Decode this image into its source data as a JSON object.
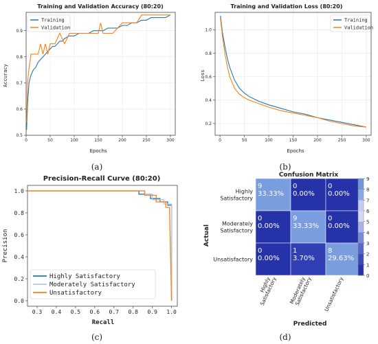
{
  "captions": {
    "a": "(a)",
    "b": "(b)",
    "c": "(c)",
    "d": "(d)"
  },
  "chart_data": [
    {
      "id": "acc",
      "type": "line",
      "title": "Training and Validation Accuracy (80:20)",
      "xlabel": "Epochs",
      "ylabel": "Accuracy",
      "xlim": [
        0,
        310
      ],
      "ylim": [
        0.5,
        0.97
      ],
      "xticks": [
        0,
        50,
        100,
        150,
        200,
        250,
        300
      ],
      "yticks": [
        0.5,
        0.6,
        0.7,
        0.8,
        0.9
      ],
      "legend": "top-left",
      "series": [
        {
          "name": "Training",
          "color": "#1f77b4",
          "x": [
            1,
            3,
            6,
            10,
            15,
            20,
            25,
            30,
            35,
            40,
            45,
            50,
            55,
            60,
            65,
            70,
            75,
            80,
            90,
            100,
            110,
            120,
            130,
            140,
            150,
            160,
            170,
            180,
            190,
            200,
            210,
            220,
            230,
            240,
            250,
            260,
            270,
            280,
            290,
            300
          ],
          "y": [
            0.52,
            0.62,
            0.7,
            0.73,
            0.75,
            0.76,
            0.78,
            0.79,
            0.8,
            0.81,
            0.82,
            0.83,
            0.84,
            0.84,
            0.85,
            0.86,
            0.86,
            0.87,
            0.88,
            0.88,
            0.89,
            0.89,
            0.89,
            0.9,
            0.9,
            0.9,
            0.91,
            0.91,
            0.91,
            0.92,
            0.92,
            0.93,
            0.93,
            0.94,
            0.94,
            0.95,
            0.95,
            0.95,
            0.95,
            0.96
          ]
        },
        {
          "name": "Validation",
          "color": "#ff7f0e",
          "x": [
            1,
            3,
            5,
            8,
            10,
            15,
            20,
            25,
            30,
            35,
            40,
            45,
            50,
            60,
            70,
            80,
            90,
            100,
            120,
            140,
            150,
            155,
            160,
            180,
            200,
            210,
            220,
            230,
            240,
            250,
            260,
            280,
            300
          ],
          "y": [
            0.55,
            0.7,
            0.74,
            0.78,
            0.81,
            0.81,
            0.81,
            0.81,
            0.85,
            0.81,
            0.85,
            0.81,
            0.85,
            0.85,
            0.89,
            0.85,
            0.89,
            0.89,
            0.89,
            0.89,
            0.89,
            0.93,
            0.89,
            0.89,
            0.93,
            0.93,
            0.93,
            0.93,
            0.96,
            0.96,
            0.96,
            0.96,
            0.96
          ]
        }
      ]
    },
    {
      "id": "loss",
      "type": "line",
      "title": "Training and Validation Loss (80:20)",
      "xlabel": "Epochs",
      "ylabel": "Loss",
      "xlim": [
        -10,
        310
      ],
      "ylim": [
        0.1,
        1.15
      ],
      "xticks": [
        0,
        50,
        100,
        150,
        200,
        250,
        300
      ],
      "yticks": [
        0.2,
        0.4,
        0.6,
        0.8,
        1.0
      ],
      "legend": "top-right",
      "series": [
        {
          "name": "Training",
          "color": "#1f77b4",
          "x": [
            1,
            5,
            10,
            15,
            20,
            30,
            40,
            50,
            60,
            80,
            100,
            125,
            150,
            175,
            200,
            225,
            250,
            275,
            300
          ],
          "y": [
            1.12,
            0.98,
            0.86,
            0.76,
            0.68,
            0.57,
            0.5,
            0.46,
            0.43,
            0.39,
            0.36,
            0.33,
            0.3,
            0.28,
            0.25,
            0.23,
            0.21,
            0.19,
            0.17
          ]
        },
        {
          "name": "Validation",
          "color": "#ff7f0e",
          "x": [
            1,
            5,
            10,
            15,
            20,
            30,
            40,
            50,
            60,
            80,
            100,
            125,
            150,
            175,
            200,
            225,
            250,
            275,
            300
          ],
          "y": [
            1.1,
            0.95,
            0.8,
            0.69,
            0.6,
            0.5,
            0.45,
            0.42,
            0.4,
            0.37,
            0.34,
            0.31,
            0.29,
            0.27,
            0.25,
            0.22,
            0.2,
            0.18,
            0.17
          ]
        }
      ]
    },
    {
      "id": "pr",
      "type": "line",
      "title": "Precision-Recall Curve (80:20)",
      "xlabel": "Recall",
      "ylabel": "Precision",
      "xlim": [
        0.25,
        1.03
      ],
      "ylim": [
        -0.05,
        1.05
      ],
      "xticks": [
        0.3,
        0.4,
        0.5,
        0.6,
        0.7,
        0.8,
        0.9,
        1.0
      ],
      "yticks": [
        0.0,
        0.2,
        0.4,
        0.6,
        0.8,
        1.0
      ],
      "legend": "bottom-left",
      "series": [
        {
          "name": "Highly Satisfactory",
          "color": "#1f77b4",
          "x": [
            0.25,
            0.83,
            0.83,
            0.89,
            0.89,
            0.94,
            0.94,
            0.98,
            0.98,
            1.0,
            1.0
          ],
          "y": [
            1.0,
            1.0,
            0.97,
            0.97,
            0.93,
            0.93,
            0.9,
            0.9,
            0.87,
            0.87,
            0.0
          ]
        },
        {
          "name": "Moderately Satisfactory",
          "color": "#aec7e8",
          "x": [
            0.25,
            0.86,
            0.86,
            0.9,
            0.9,
            0.96,
            0.96,
            1.0,
            1.0
          ],
          "y": [
            1.0,
            1.0,
            0.97,
            0.97,
            0.92,
            0.92,
            0.88,
            0.88,
            0.0
          ]
        },
        {
          "name": "Unsatisfactory",
          "color": "#ff7f0e",
          "x": [
            0.25,
            0.86,
            0.86,
            0.92,
            0.92,
            0.97,
            0.97,
            0.99,
            0.99,
            1.0
          ],
          "y": [
            1.0,
            1.0,
            0.96,
            0.96,
            0.9,
            0.9,
            0.85,
            0.85,
            0.8,
            0.0
          ]
        }
      ]
    },
    {
      "id": "cm",
      "type": "heatmap",
      "title": "Confusion Matrix",
      "xlabel": "Predicted",
      "ylabel": "Actual",
      "row_labels": [
        [
          "Highly",
          "Satisfactory"
        ],
        [
          "Moderately",
          "Satisfactory"
        ],
        [
          "Unsatisfactory"
        ]
      ],
      "col_labels": [
        [
          "Highly",
          "Satisfactory"
        ],
        [
          "Moderately",
          "Satisfactory"
        ],
        [
          "Unsatisfactory"
        ]
      ],
      "values": [
        [
          9,
          0,
          0
        ],
        [
          0,
          9,
          0
        ],
        [
          0,
          1,
          8
        ]
      ],
      "percents": [
        [
          "33.33%",
          "0.00%",
          "0.00%"
        ],
        [
          "0.00%",
          "33.33%",
          "0.00%"
        ],
        [
          "0.00%",
          "3.70%",
          "29.63%"
        ]
      ],
      "colorbar_ticks": [
        0,
        1,
        2,
        3,
        4,
        5,
        6,
        7,
        8,
        9
      ],
      "colors": {
        "low": "#2b3aa6",
        "high": "#7aa0e0",
        "mid": "#c8cdf0"
      }
    }
  ]
}
